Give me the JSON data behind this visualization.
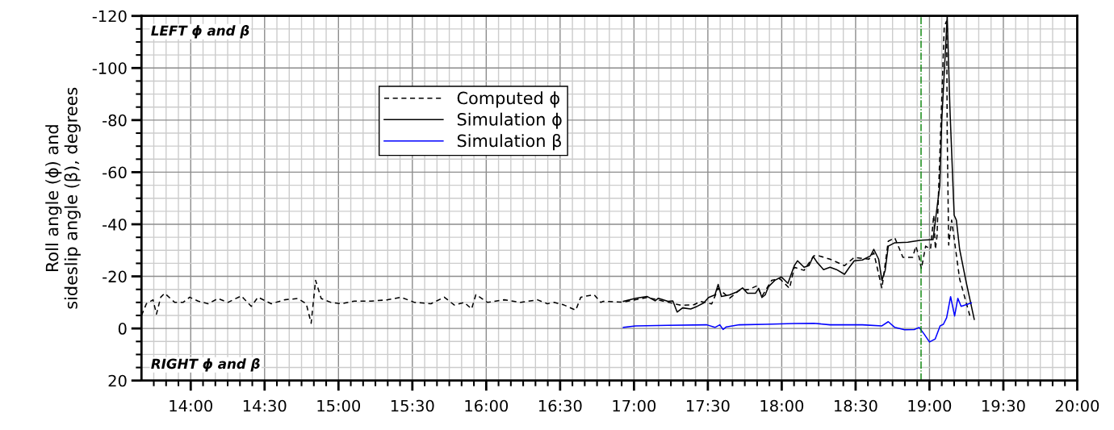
{
  "chart_data": {
    "type": "line",
    "ylabel": "Roll angle (ϕ) and\nsideslip angle (β), degrees",
    "xlim": [
      13.6667,
      20
    ],
    "ylim": [
      20,
      -120
    ],
    "xticks": [
      {
        "value": 14,
        "label": "14:00"
      },
      {
        "value": 14.5,
        "label": "14:30"
      },
      {
        "value": 15,
        "label": "15:00"
      },
      {
        "value": 15.5,
        "label": "15:30"
      },
      {
        "value": 16,
        "label": "16:00"
      },
      {
        "value": 16.5,
        "label": "16:30"
      },
      {
        "value": 17,
        "label": "17:00"
      },
      {
        "value": 17.5,
        "label": "17:30"
      },
      {
        "value": 18,
        "label": "18:00"
      },
      {
        "value": 18.5,
        "label": "18:30"
      },
      {
        "value": 19,
        "label": "19:00"
      },
      {
        "value": 19.5,
        "label": "19:30"
      },
      {
        "value": 20,
        "label": "20:00"
      }
    ],
    "yticks": [
      -120,
      -100,
      -80,
      -60,
      -40,
      -20,
      0,
      20
    ],
    "grid": true,
    "legend": "top left",
    "annotations": [
      "LEFT ϕ and β",
      "RIGHT ϕ and β"
    ],
    "ref_lines": [
      {
        "axis": "x",
        "value": 18.943,
        "label": null,
        "color": "#008000",
        "line_style": "dashdot"
      }
    ],
    "series": [
      {
        "name": "Computed ϕ",
        "color": "#000000",
        "line_style": "dashed",
        "x": [
          13.667,
          13.7,
          13.745,
          13.768,
          13.797,
          13.824,
          13.892,
          13.948,
          13.993,
          14.05,
          14.117,
          14.185,
          14.252,
          14.342,
          14.41,
          14.455,
          14.545,
          14.635,
          14.725,
          14.782,
          14.815,
          14.845,
          14.883,
          14.95,
          15.018,
          15.108,
          15.221,
          15.333,
          15.423,
          15.514,
          15.626,
          15.716,
          15.784,
          15.851,
          15.901,
          15.93,
          16.009,
          16.122,
          16.234,
          16.347,
          16.414,
          16.459,
          16.527,
          16.606,
          16.64,
          16.73,
          16.775,
          16.792,
          16.928,
          17.088,
          17.23,
          17.318,
          17.406,
          17.45,
          17.526,
          17.57,
          17.647,
          17.713,
          17.779,
          17.833,
          17.866,
          17.932,
          17.987,
          18.053,
          18.085,
          18.151,
          18.217,
          18.25,
          18.327,
          18.425,
          18.491,
          18.59,
          18.623,
          18.678,
          18.721,
          18.765,
          18.798,
          18.82,
          18.886,
          18.908,
          18.93,
          18.945,
          18.974,
          19.007,
          19.029,
          19.04,
          19.051,
          19.1,
          19.116,
          19.12,
          19.13,
          19.15,
          19.204,
          19.28
        ],
        "values": [
          -5,
          -9.5,
          -11,
          -5.5,
          -12,
          -13.5,
          -10,
          -10,
          -12,
          -10.5,
          -9.5,
          -11.5,
          -10,
          -12.5,
          -8.5,
          -12,
          -9.5,
          -11,
          -11.5,
          -9.5,
          -2,
          -18.5,
          -11.5,
          -10,
          -9.5,
          -10.5,
          -10.5,
          -11,
          -12,
          -10,
          -9.5,
          -12,
          -9,
          -10,
          -7.5,
          -13,
          -10,
          -11,
          -10,
          -11,
          -9.5,
          -10,
          -9,
          -7,
          -12,
          -13,
          -10,
          -10.4,
          -10.1,
          -11.9,
          -10.1,
          -8.9,
          -9.1,
          -10.4,
          -9.4,
          -15.4,
          -11.6,
          -14.6,
          -15,
          -16.4,
          -12.3,
          -18.5,
          -19.1,
          -15.4,
          -23.5,
          -22.3,
          -27.9,
          -27.9,
          -26.6,
          -24.1,
          -27.3,
          -26.6,
          -29.1,
          -15.4,
          -33.5,
          -34.8,
          -30.4,
          -27.3,
          -27.3,
          -31.6,
          -27.3,
          -22.9,
          -31.6,
          -30.4,
          -43.5,
          -30.4,
          -35.5,
          -116,
          -118,
          -74.5,
          -32,
          -41.6,
          -19,
          -3.5
        ]
      },
      {
        "name": "Simulation ϕ",
        "color": "#000000",
        "line_style": "solid",
        "x": [
          16.928,
          17.011,
          17.088,
          17.143,
          17.165,
          17.23,
          17.263,
          17.292,
          17.329,
          17.384,
          17.428,
          17.472,
          17.505,
          17.548,
          17.57,
          17.592,
          17.647,
          17.691,
          17.735,
          17.768,
          17.822,
          17.844,
          17.866,
          17.888,
          17.91,
          17.954,
          17.998,
          18.042,
          18.085,
          18.107,
          18.151,
          18.184,
          18.213,
          18.239,
          18.283,
          18.327,
          18.371,
          18.425,
          18.458,
          18.491,
          18.546,
          18.601,
          18.623,
          18.656,
          18.678,
          18.7,
          18.721,
          18.765,
          18.853,
          18.941,
          19.024,
          19.07,
          19.083,
          19.12,
          19.138,
          19.167,
          19.182,
          19.204,
          19.248,
          19.303
        ],
        "values": [
          -10.4,
          -11.6,
          -12.3,
          -10.6,
          -11.6,
          -10.4,
          -10.6,
          -6.3,
          -7.9,
          -7.5,
          -8.5,
          -9.8,
          -11.9,
          -12.9,
          -16.9,
          -12.3,
          -12.9,
          -13.9,
          -15.6,
          -13.5,
          -13.5,
          -15.4,
          -11.9,
          -12.9,
          -16,
          -18.5,
          -19.8,
          -17.3,
          -24.1,
          -26,
          -23.5,
          -24.1,
          -27.6,
          -25.4,
          -22.6,
          -23.5,
          -22.6,
          -20.8,
          -23.5,
          -26,
          -26.3,
          -27.9,
          -30.4,
          -26.6,
          -18.5,
          -22.3,
          -31.6,
          -32.9,
          -33.1,
          -33.9,
          -34.1,
          -55,
          -79.7,
          -120,
          -85,
          -43.5,
          -41.6,
          -30.4,
          -17.9,
          -3.5
        ]
      },
      {
        "name": "Simulation β",
        "color": "#0000ff",
        "line_style": "solid",
        "x": [
          16.928,
          17.011,
          17.23,
          17.493,
          17.548,
          17.581,
          17.603,
          17.625,
          17.713,
          17.888,
          18.085,
          18.217,
          18.327,
          18.546,
          18.678,
          18.721,
          18.765,
          18.831,
          18.897,
          18.93,
          18.963,
          19.0,
          19.039,
          19.072,
          19.094,
          19.116,
          19.143,
          19.17,
          19.192,
          19.214,
          19.283
        ],
        "values": [
          -0.4,
          -1,
          -1.2,
          -1.4,
          -0.4,
          -1.4,
          0.4,
          -0.6,
          -1.4,
          -1.6,
          -1.9,
          -2,
          -1.4,
          -1.4,
          -1,
          -2.6,
          -0.4,
          0.5,
          0.4,
          -0.4,
          2.1,
          5.2,
          4,
          -1,
          -1.6,
          -4.1,
          -12.2,
          -4.8,
          -11.6,
          -8.5,
          -9.8
        ]
      }
    ]
  }
}
